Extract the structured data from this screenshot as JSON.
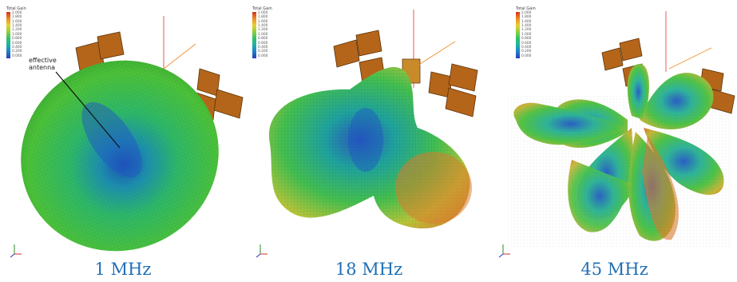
{
  "colorbar": {
    "title": "Total Gain",
    "ticks_panel1": [
      "2.000",
      "1.800",
      "1.600",
      "1.400",
      "1.200",
      "1.000",
      "0.800",
      "0.600",
      "0.400",
      "0.200",
      "0.000"
    ],
    "ticks_panel2": [
      "2.000",
      "1.800",
      "1.600",
      "1.400",
      "1.200",
      "1.000",
      "0.800",
      "0.600",
      "0.400",
      "0.200",
      "0.000"
    ],
    "ticks_panel3": [
      "2.000",
      "1.800",
      "1.600",
      "1.400",
      "1.200",
      "1.000",
      "0.800",
      "0.600",
      "0.400",
      "0.200",
      "0.000"
    ],
    "colors": [
      "#d7301f",
      "#f08a24",
      "#e9d02e",
      "#8fd13a",
      "#2fc26a",
      "#1bb3a6",
      "#1d7fd0",
      "#2b3fb6"
    ]
  },
  "annotation": {
    "line1": "effective",
    "line2": "antenna"
  },
  "panels": [
    {
      "freq": "1 MHz"
    },
    {
      "freq": "18 MHz"
    },
    {
      "freq": "45 MHz"
    }
  ]
}
